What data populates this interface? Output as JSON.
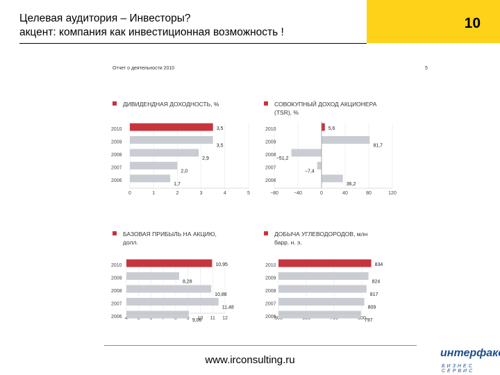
{
  "slide": {
    "title_line1": "Целевая аудитория – Инвесторы?",
    "title_line2": "акцент: компания как инвестиционная возможность !",
    "page_number": "10",
    "report_label": "Отчет о деятельности 2010",
    "report_page": "5",
    "footer_url": "www.irconsulting.ru",
    "logo_main": "интерфакс",
    "logo_sub": "БИЗНЕС СЕРВИС"
  },
  "colors": {
    "highlight": "#c7343e",
    "bar": "#c9cdd3",
    "accent": "#ffd21a",
    "brand": "#1d4d8c"
  },
  "chart_data": [
    {
      "id": "dividend",
      "type": "bar",
      "orientation": "horizontal",
      "title": "ДИВИДЕНДНАЯ ДОХОДНОСТЬ, %",
      "categories": [
        "2010",
        "2009",
        "2008",
        "2007",
        "2006"
      ],
      "values": [
        3.5,
        3.5,
        2.9,
        2.0,
        1.7
      ],
      "value_labels": [
        "3,5",
        "3,5",
        "2,9",
        "2,0",
        "1,7"
      ],
      "highlight_index": 0,
      "xlim": [
        0,
        5
      ],
      "xticks": [
        "0",
        "1",
        "2",
        "3",
        "4",
        "5"
      ]
    },
    {
      "id": "tsr",
      "type": "bar",
      "orientation": "horizontal",
      "title": "СОВОКУПНЫЙ ДОХОД АКЦИОНЕРА (TSR), %",
      "categories": [
        "2010",
        "2009",
        "2008",
        "2007",
        "2006"
      ],
      "values": [
        5.6,
        81.7,
        -51.2,
        -7.4,
        36.2
      ],
      "value_labels": [
        "5,6",
        "81,7",
        "−51,2",
        "−7,4",
        "36,2"
      ],
      "highlight_index": 0,
      "xlim": [
        -80,
        120
      ],
      "xticks": [
        "−80",
        "−40",
        "0",
        "40",
        "80",
        "120"
      ]
    },
    {
      "id": "eps",
      "type": "bar",
      "orientation": "horizontal",
      "title": "БАЗОВАЯ ПРИБЫЛЬ НА АКЦИЮ, долл.",
      "categories": [
        "2010",
        "2009",
        "2008",
        "2007",
        "2006"
      ],
      "values": [
        10.95,
        8.28,
        10.88,
        11.48,
        9.06
      ],
      "value_labels": [
        "10,95",
        "8,28",
        "10,88",
        "11,48",
        "9,06"
      ],
      "highlight_index": 0,
      "xlim": [
        4,
        12
      ],
      "xticks": [
        "4",
        "5",
        "6",
        "7",
        "8",
        "9",
        "10",
        "11",
        "12"
      ]
    },
    {
      "id": "production",
      "type": "bar",
      "orientation": "horizontal",
      "title": "ДОБЫЧА УГЛЕВОДОРОДОВ, млн барр. н. э.",
      "categories": [
        "2010",
        "2009",
        "2008",
        "2007",
        "2006"
      ],
      "values": [
        834,
        824,
        817,
        809,
        797
      ],
      "value_labels": [
        "834",
        "824",
        "817",
        "809",
        "797"
      ],
      "highlight_index": 0,
      "xlim": [
        500,
        800
      ],
      "xticks": [
        "500",
        "600",
        "700",
        "800"
      ]
    }
  ]
}
